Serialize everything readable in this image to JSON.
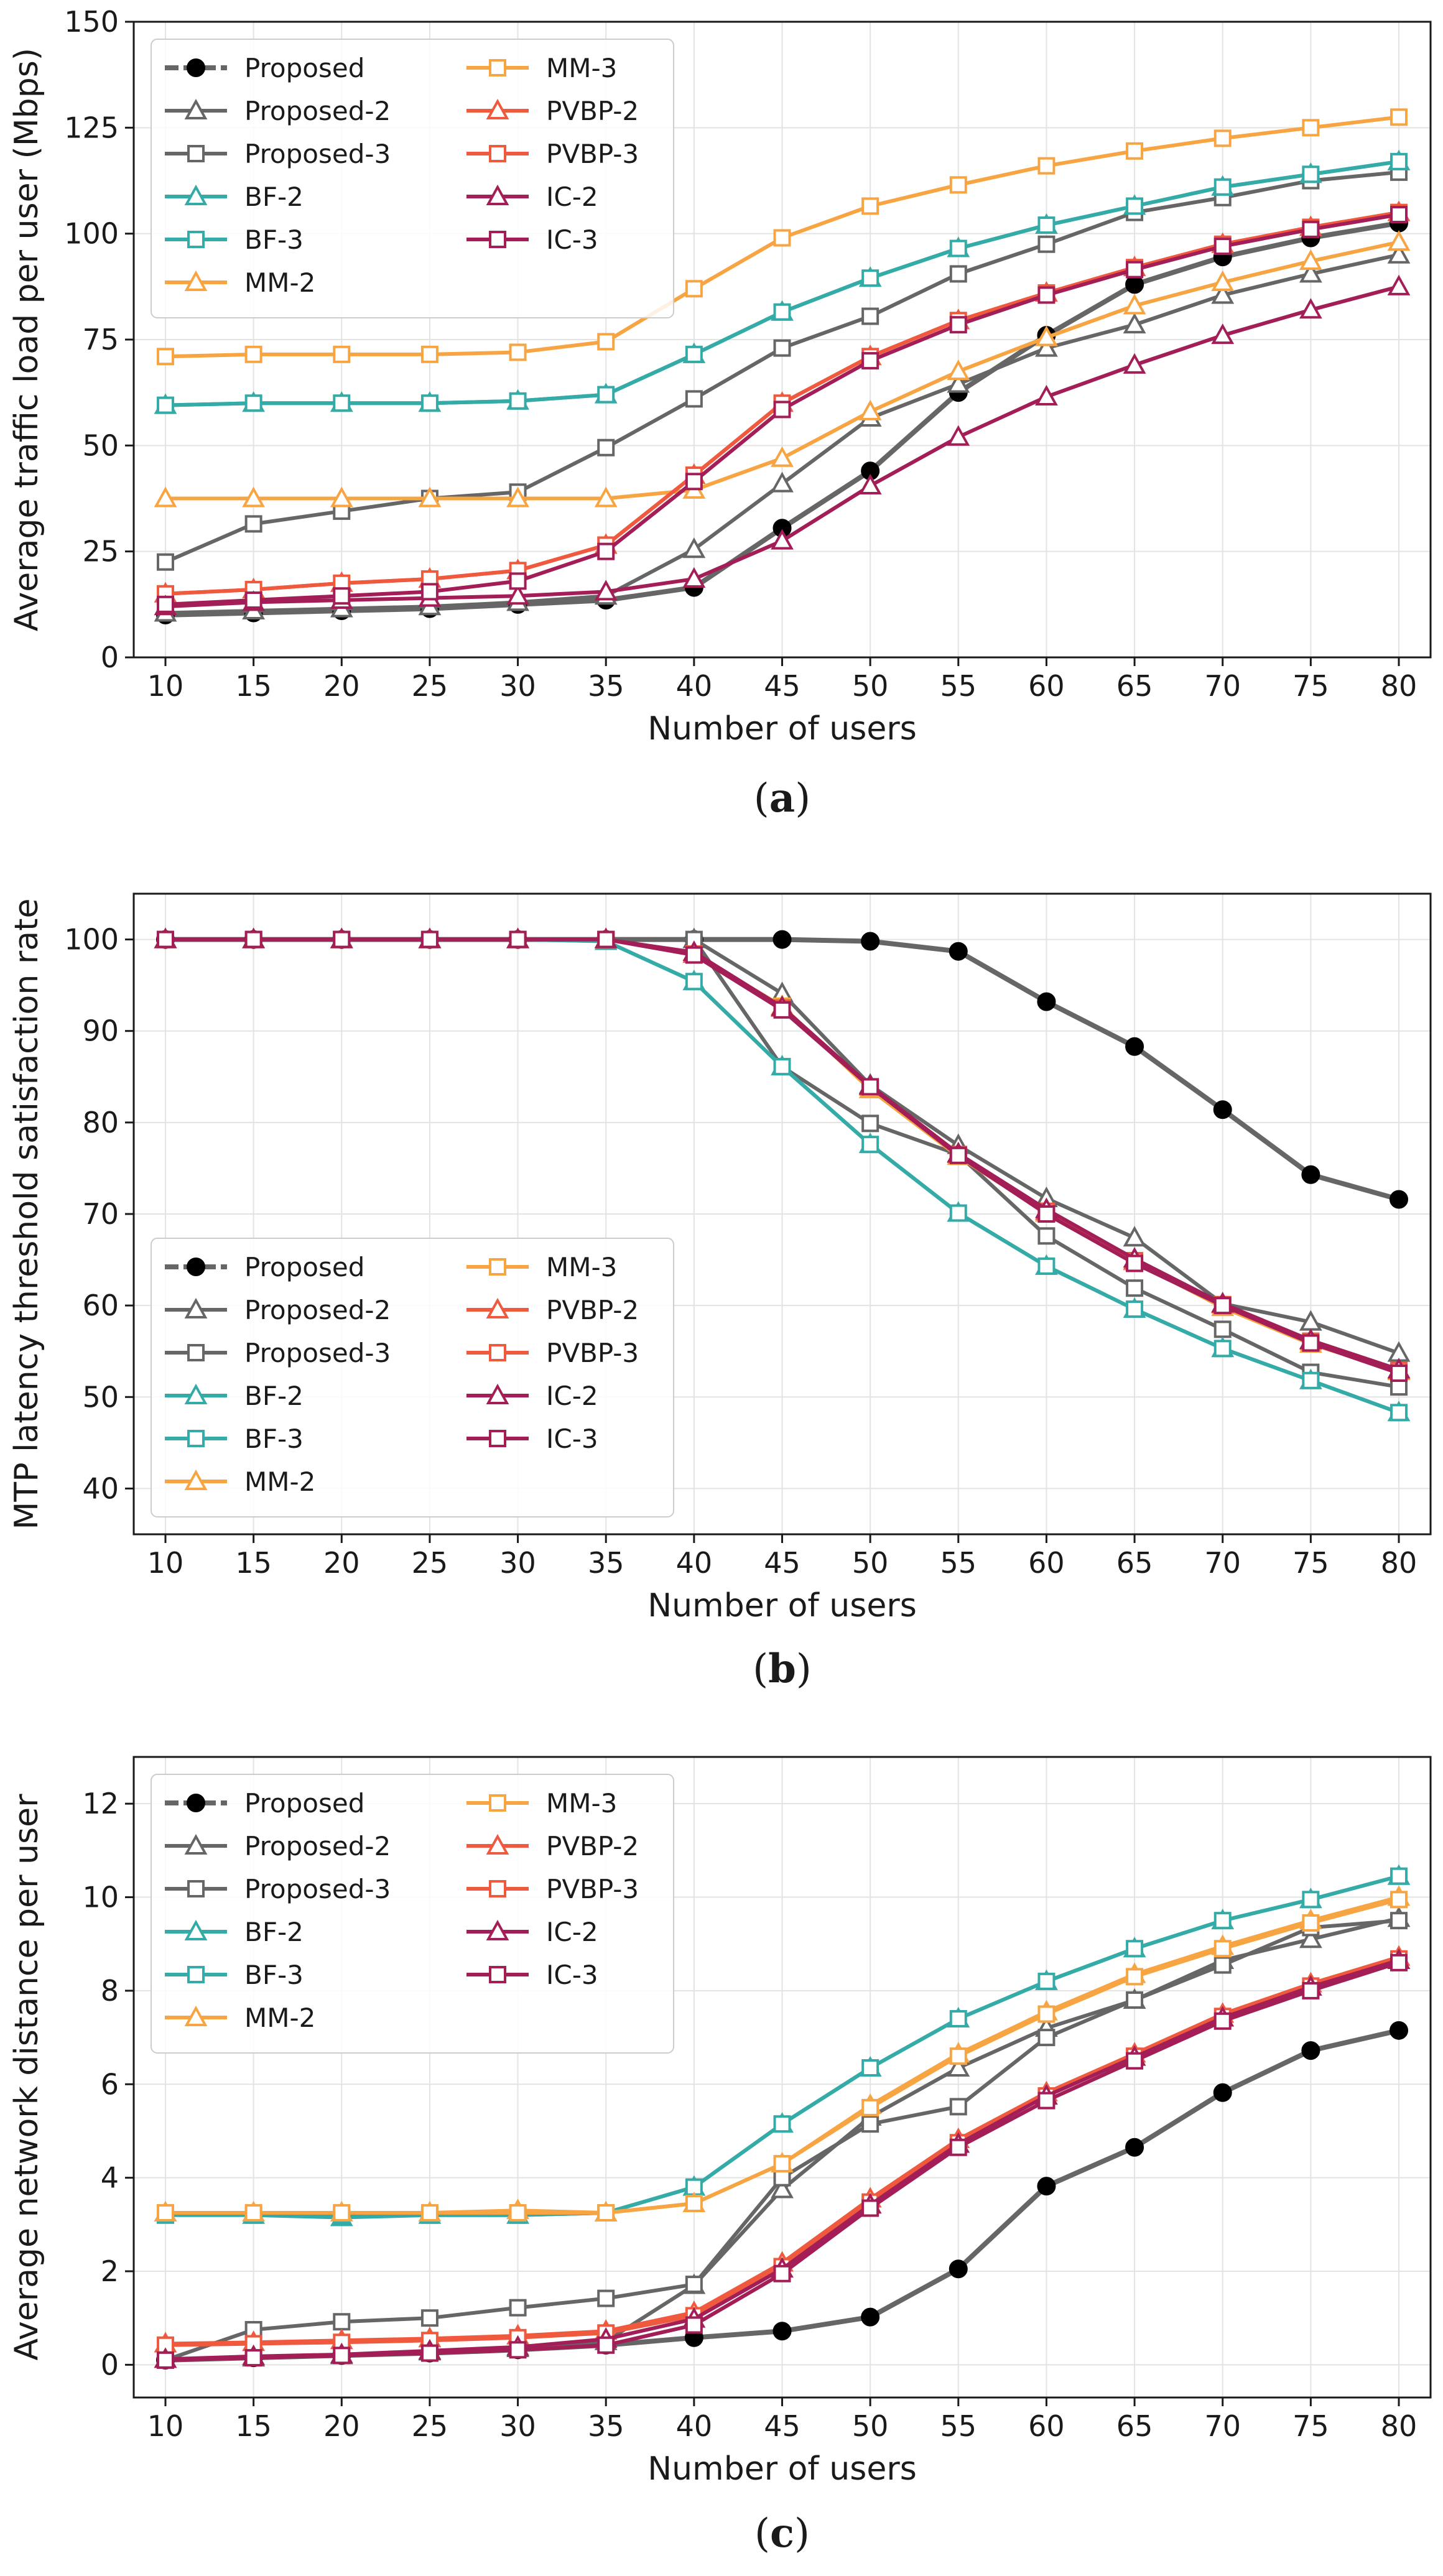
{
  "chart_data": [
    {
      "type": "line",
      "caption": "(a)",
      "caption_letter": "a",
      "xlabel": "Number of users",
      "ylabel": "Average traffic load per user (Mbps)",
      "x": [
        10,
        15,
        20,
        25,
        30,
        35,
        40,
        45,
        50,
        55,
        60,
        65,
        70,
        75,
        80
      ],
      "xlim": [
        8.2,
        81.8
      ],
      "ylim": [
        0,
        150
      ],
      "yticks": [
        0,
        25,
        50,
        75,
        100,
        125,
        150
      ],
      "ytick_labels": [
        "0",
        "25",
        "50",
        "75",
        "100",
        "125",
        "150"
      ],
      "grid": true,
      "legend": "top-left",
      "series": [
        {
          "name": "Proposed",
          "color": "#000000",
          "marker": "circle",
          "values": [
            10,
            10.5,
            11,
            11.5,
            12.5,
            13.5,
            16.5,
            30.5,
            44,
            62.5,
            76,
            88,
            94.5,
            99,
            102.5
          ]
        },
        {
          "name": "Proposed-2",
          "color": "#666666",
          "marker": "triangle",
          "values": [
            10.5,
            11,
            11.5,
            12,
            13,
            14.5,
            25.5,
            41,
            56.5,
            64.5,
            73,
            78.5,
            85.5,
            90.5,
            95
          ]
        },
        {
          "name": "Proposed-3",
          "color": "#666666",
          "marker": "square",
          "values": [
            22.5,
            31.5,
            34.5,
            37.5,
            39,
            49.5,
            61,
            73,
            80.5,
            90.5,
            97.5,
            105,
            108.5,
            112.5,
            114.5
          ]
        },
        {
          "name": "BF-2",
          "color": "#35aba8",
          "marker": "triangle",
          "values": [
            59.5,
            60,
            60,
            60,
            60.5,
            62,
            71.5,
            81.5,
            89.5,
            96.5,
            102,
            106.5,
            111,
            114,
            117
          ]
        },
        {
          "name": "BF-3",
          "color": "#35aba8",
          "marker": "square",
          "values": [
            59.5,
            60,
            60,
            60,
            60.5,
            62,
            71.5,
            81.5,
            89.5,
            96.5,
            102,
            106.5,
            111,
            114,
            117
          ]
        },
        {
          "name": "MM-2",
          "color": "#f7a443",
          "marker": "triangle",
          "values": [
            37.5,
            37.5,
            37.5,
            37.5,
            37.5,
            37.5,
            39.5,
            47,
            58,
            67.5,
            75.5,
            83,
            88.5,
            93.5,
            98
          ]
        },
        {
          "name": "MM-3",
          "color": "#f7a443",
          "marker": "square",
          "values": [
            71,
            71.5,
            71.5,
            71.5,
            72,
            74.5,
            87,
            99,
            106.5,
            111.5,
            116,
            119.5,
            122.5,
            125,
            127.5
          ]
        },
        {
          "name": "PVBP-2",
          "color": "#ef5a3f",
          "marker": "triangle",
          "values": [
            15,
            16,
            17.5,
            18.5,
            20.5,
            26.5,
            43,
            60,
            71,
            79.5,
            86,
            92,
            97.5,
            101.5,
            105
          ]
        },
        {
          "name": "PVBP-3",
          "color": "#ef5a3f",
          "marker": "square",
          "values": [
            15,
            16,
            17.5,
            18.5,
            20.5,
            26.5,
            43,
            60,
            71,
            79.5,
            86,
            92,
            97.5,
            101.5,
            105
          ]
        },
        {
          "name": "IC-2",
          "color": "#a31e57",
          "marker": "triangle",
          "values": [
            12,
            13,
            13.5,
            14,
            14.5,
            15.5,
            18.5,
            27.5,
            40.5,
            52,
            61.5,
            69,
            76,
            82,
            87.5
          ]
        },
        {
          "name": "IC-3",
          "color": "#a31e57",
          "marker": "square",
          "values": [
            12.5,
            13.5,
            14.5,
            15.5,
            18,
            25,
            41.5,
            58.5,
            70,
            78.5,
            85.5,
            91.5,
            97,
            101,
            104.5
          ]
        }
      ]
    },
    {
      "type": "line",
      "caption": "(b)",
      "caption_letter": "b",
      "xlabel": "Number of users",
      "ylabel": "MTP latency threshold satisfaction rate",
      "x": [
        10,
        15,
        20,
        25,
        30,
        35,
        40,
        45,
        50,
        55,
        60,
        65,
        70,
        75,
        80
      ],
      "xlim": [
        8.2,
        81.8
      ],
      "ylim": [
        35,
        105
      ],
      "yticks": [
        40,
        50,
        60,
        70,
        80,
        90,
        100
      ],
      "ytick_labels": [
        "40",
        "50",
        "60",
        "70",
        "80",
        "90",
        "100"
      ],
      "grid": true,
      "legend": "bottom-left",
      "series": [
        {
          "name": "Proposed",
          "color": "#000000",
          "marker": "circle",
          "values": [
            100,
            100,
            100,
            100,
            100,
            100,
            100,
            100,
            99.8,
            98.7,
            93.2,
            88.3,
            81.4,
            74.3,
            71.6
          ]
        },
        {
          "name": "Proposed-2",
          "color": "#666666",
          "marker": "triangle",
          "values": [
            100,
            100,
            100,
            100,
            100,
            100,
            100,
            94.1,
            84.1,
            77.5,
            71.7,
            67.4,
            60.2,
            58.2,
            54.8
          ]
        },
        {
          "name": "Proposed-3",
          "color": "#666666",
          "marker": "square",
          "values": [
            100,
            100,
            100,
            100,
            100,
            100,
            100,
            86.1,
            79.9,
            76.5,
            67.6,
            61.9,
            57.4,
            52.7,
            51.1
          ]
        },
        {
          "name": "BF-2",
          "color": "#35aba8",
          "marker": "triangle",
          "values": [
            100,
            100,
            100,
            100,
            100,
            99.8,
            95.4,
            86.1,
            77.6,
            70.1,
            64.3,
            59.6,
            55.3,
            51.8,
            48.3
          ]
        },
        {
          "name": "BF-3",
          "color": "#35aba8",
          "marker": "square",
          "values": [
            100,
            100,
            100,
            100,
            100,
            99.8,
            95.4,
            86.1,
            77.6,
            70.1,
            64.3,
            59.6,
            55.3,
            51.8,
            48.3
          ]
        },
        {
          "name": "MM-2",
          "color": "#f7a443",
          "marker": "triangle",
          "values": [
            100,
            100,
            100,
            100,
            100,
            100,
            98.4,
            92.7,
            83.6,
            76.3,
            70.1,
            64.8,
            59.8,
            55.8,
            52.8
          ]
        },
        {
          "name": "MM-3",
          "color": "#f7a443",
          "marker": "square",
          "values": [
            100,
            100,
            100,
            100,
            100,
            100,
            98.4,
            92.7,
            83.6,
            76.3,
            70.1,
            64.8,
            59.8,
            55.8,
            52.8
          ]
        },
        {
          "name": "PVBP-2",
          "color": "#ef5a3f",
          "marker": "triangle",
          "values": [
            100,
            100,
            100,
            100,
            100,
            100,
            98.4,
            92.5,
            83.9,
            76.5,
            70.3,
            64.9,
            60.1,
            56.1,
            52.9
          ]
        },
        {
          "name": "PVBP-3",
          "color": "#ef5a3f",
          "marker": "square",
          "values": [
            100,
            100,
            100,
            100,
            100,
            100,
            98.4,
            92.5,
            83.9,
            76.5,
            70.3,
            64.9,
            60.1,
            56.1,
            52.9
          ]
        },
        {
          "name": "IC-2",
          "color": "#a31e57",
          "marker": "triangle",
          "values": [
            100,
            100,
            100,
            100,
            100,
            100,
            98.6,
            92.6,
            84,
            76.6,
            70.5,
            65.1,
            60.2,
            56.2,
            53
          ]
        },
        {
          "name": "IC-3",
          "color": "#a31e57",
          "marker": "square",
          "values": [
            100,
            100,
            100,
            100,
            100,
            100,
            98.3,
            92.3,
            83.9,
            76.4,
            70,
            64.6,
            60,
            55.9,
            52.6
          ]
        }
      ]
    },
    {
      "type": "line",
      "caption": "(c)",
      "caption_letter": "c",
      "xlabel": "Number of users",
      "ylabel": "Average network distance per user",
      "x": [
        10,
        15,
        20,
        25,
        30,
        35,
        40,
        45,
        50,
        55,
        60,
        65,
        70,
        75,
        80
      ],
      "xlim": [
        8.2,
        81.8
      ],
      "ylim": [
        -0.7,
        13
      ],
      "yticks": [
        0,
        2,
        4,
        6,
        8,
        10,
        12
      ],
      "ytick_labels": [
        "0",
        "2",
        "4",
        "6",
        "8",
        "10",
        "12"
      ],
      "grid": true,
      "legend": "top-left",
      "series": [
        {
          "name": "Proposed",
          "color": "#000000",
          "marker": "circle",
          "values": [
            0.1,
            0.15,
            0.2,
            0.25,
            0.32,
            0.42,
            0.58,
            0.72,
            1.02,
            2.05,
            3.82,
            4.65,
            5.82,
            6.72,
            7.15
          ]
        },
        {
          "name": "Proposed-2",
          "color": "#666666",
          "marker": "triangle",
          "values": [
            0.12,
            0.15,
            0.2,
            0.28,
            0.35,
            0.5,
            1.7,
            3.75,
            5.3,
            6.35,
            7.2,
            7.8,
            8.65,
            9.1,
            9.55
          ]
        },
        {
          "name": "Proposed-3",
          "color": "#666666",
          "marker": "square",
          "values": [
            0.1,
            0.75,
            0.92,
            1.0,
            1.22,
            1.42,
            1.72,
            4.0,
            5.15,
            5.52,
            7.0,
            7.8,
            8.55,
            9.35,
            9.5
          ]
        },
        {
          "name": "BF-2",
          "color": "#35aba8",
          "marker": "triangle",
          "values": [
            3.25,
            3.2,
            3.15,
            3.2,
            3.2,
            3.25,
            3.8,
            5.15,
            6.35,
            7.4,
            8.2,
            8.9,
            9.5,
            9.95,
            10.45
          ]
        },
        {
          "name": "BF-3",
          "color": "#35aba8",
          "marker": "square",
          "values": [
            3.2,
            3.2,
            3.2,
            3.2,
            3.2,
            3.25,
            3.8,
            5.15,
            6.35,
            7.4,
            8.2,
            8.9,
            9.5,
            9.95,
            10.45
          ]
        },
        {
          "name": "MM-2",
          "color": "#f7a443",
          "marker": "triangle",
          "values": [
            3.25,
            3.25,
            3.25,
            3.25,
            3.3,
            3.25,
            3.45,
            4.3,
            5.55,
            6.65,
            7.55,
            8.35,
            8.95,
            9.5,
            10
          ]
        },
        {
          "name": "MM-3",
          "color": "#f7a443",
          "marker": "square",
          "values": [
            3.25,
            3.25,
            3.25,
            3.25,
            3.25,
            3.25,
            3.45,
            4.3,
            5.5,
            6.6,
            7.5,
            8.3,
            8.9,
            9.45,
            9.95
          ]
        },
        {
          "name": "PVBP-2",
          "color": "#ef5a3f",
          "marker": "triangle",
          "values": [
            0.45,
            0.48,
            0.52,
            0.56,
            0.62,
            0.72,
            1.12,
            2.18,
            3.55,
            4.82,
            5.82,
            6.65,
            7.5,
            8.15,
            8.72
          ]
        },
        {
          "name": "PVBP-3",
          "color": "#ef5a3f",
          "marker": "square",
          "values": [
            0.42,
            0.45,
            0.48,
            0.52,
            0.58,
            0.68,
            1.05,
            2.1,
            3.48,
            4.75,
            5.75,
            6.6,
            7.45,
            8.1,
            8.68
          ]
        },
        {
          "name": "IC-2",
          "color": "#a31e57",
          "marker": "triangle",
          "values": [
            0.12,
            0.18,
            0.22,
            0.3,
            0.38,
            0.55,
            0.98,
            2.05,
            3.42,
            4.72,
            5.75,
            6.58,
            7.42,
            8.08,
            8.65
          ]
        },
        {
          "name": "IC-3",
          "color": "#a31e57",
          "marker": "square",
          "values": [
            0.1,
            0.15,
            0.2,
            0.25,
            0.32,
            0.42,
            0.85,
            1.95,
            3.35,
            4.65,
            5.65,
            6.5,
            7.35,
            8.0,
            8.6
          ]
        }
      ]
    }
  ]
}
